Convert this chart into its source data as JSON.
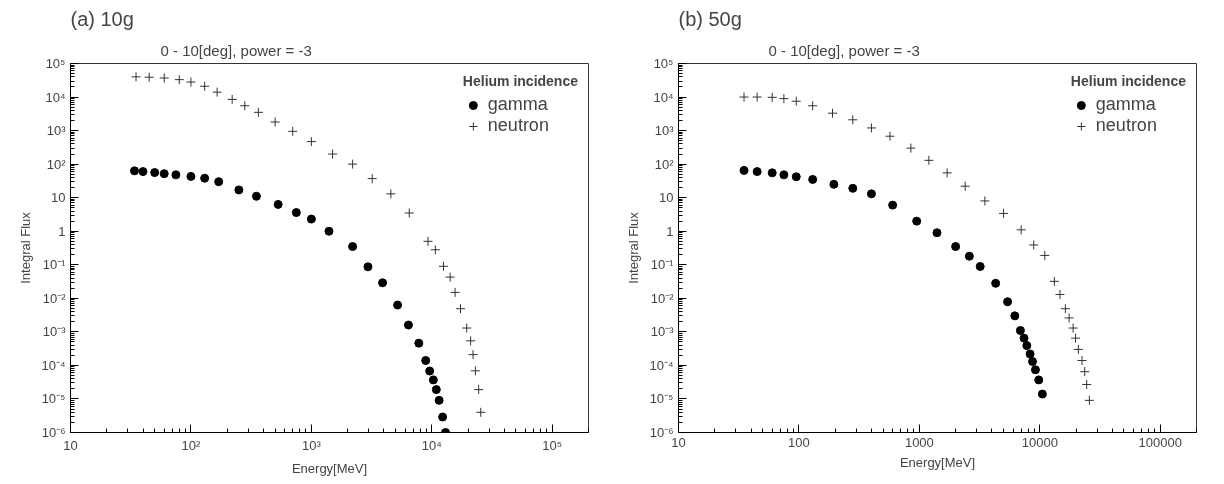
{
  "chart_data": [
    {
      "type": "scatter",
      "title": "(a) 10g",
      "subtitle": "0 - 10[deg], power = -3",
      "xlabel": "Energy[MeV]",
      "ylabel": "Integral Flux",
      "legend_title": "Helium incidence",
      "legend": "top right",
      "log": "xy",
      "grid": false,
      "xlim": [
        10,
        200000
      ],
      "ylim": [
        1e-06,
        100000
      ],
      "xticks": [
        10,
        {
          "value": 100,
          "label": "10²"
        },
        {
          "value": 1000,
          "label": "10³"
        },
        {
          "value": 10000,
          "label": "10⁴"
        },
        {
          "value": 100000,
          "label": "10⁵"
        }
      ],
      "yticks": [
        {
          "value": 1e-06,
          "label": "10⁻⁶"
        },
        {
          "value": 1e-05,
          "label": "10⁻⁵"
        },
        {
          "value": 0.0001,
          "label": "10⁻⁴"
        },
        {
          "value": 0.001,
          "label": "10⁻³"
        },
        {
          "value": 0.01,
          "label": "10⁻²"
        },
        {
          "value": 0.1,
          "label": "10⁻¹"
        },
        1,
        10,
        {
          "value": 100,
          "label": "10²"
        },
        {
          "value": 1000,
          "label": "10³"
        },
        {
          "value": 10000,
          "label": "10⁴"
        },
        {
          "value": 100000,
          "label": "10⁵"
        }
      ],
      "series": [
        {
          "name": "gamma",
          "color": "#000000",
          "marker": "circle",
          "x": [
            34,
            40,
            50,
            60,
            75,
            100,
            130,
            170,
            250,
            350,
            530,
            750,
            1000,
            1400,
            2200,
            2950,
            3900,
            5200,
            6400,
            7800,
            8900,
            9600,
            10300,
            10900,
            11500,
            12300,
            13000
          ],
          "values": [
            63,
            60,
            56,
            52,
            48,
            43,
            38,
            30,
            17,
            11,
            6.3,
            3.6,
            2.3,
            1.0,
            0.35,
            0.087,
            0.029,
            0.0063,
            0.0016,
            0.00046,
            0.00014,
            6.8e-05,
            3.7e-05,
            1.9e-05,
            9.1e-06,
            2.9e-06,
            1e-06
          ]
        },
        {
          "name": "neutron",
          "color": "#333333",
          "marker": "cross",
          "x": [
            35,
            45,
            60,
            80,
            100,
            130,
            165,
            220,
            280,
            363,
            500,
            700,
            1000,
            1500,
            2200,
            3200,
            4570,
            6500,
            9300,
            10700,
            12500,
            14200,
            15600,
            17300,
            19500,
            21000,
            22000,
            23000,
            24500,
            25500
          ],
          "values": [
            40000,
            39000,
            37000,
            33000,
            28000,
            21000,
            14000,
            8500,
            5500,
            3500,
            1800,
            950,
            470,
            200,
            100,
            37,
            13,
            3.5,
            0.5,
            0.28,
            0.09,
            0.043,
            0.015,
            0.0049,
            0.0013,
            0.00054,
            0.00021,
            6.9e-05,
            1.9e-05,
            4e-06
          ]
        }
      ]
    },
    {
      "type": "scatter",
      "title": "(b) 50g",
      "subtitle": "0 - 10[deg], power = -3",
      "xlabel": "Energy[MeV]",
      "ylabel": "Integral Flux",
      "legend_title": "Helium incidence",
      "legend": "top right",
      "log": "xy",
      "grid": false,
      "xlim": [
        10,
        200000
      ],
      "ylim": [
        1e-06,
        100000
      ],
      "xticks": [
        10,
        100,
        1000,
        10000,
        100000
      ],
      "yticks": [
        {
          "value": 1e-06,
          "label": "10⁻⁶"
        },
        {
          "value": 1e-05,
          "label": "10⁻⁵"
        },
        {
          "value": 0.0001,
          "label": "10⁻⁴"
        },
        {
          "value": 0.001,
          "label": "10⁻³"
        },
        {
          "value": 0.01,
          "label": "10⁻²"
        },
        {
          "value": 0.1,
          "label": "10⁻¹"
        },
        1,
        10,
        {
          "value": 100,
          "label": "10²"
        },
        {
          "value": 1000,
          "label": "10³"
        },
        {
          "value": 10000,
          "label": "10⁴"
        },
        {
          "value": 100000,
          "label": "10⁵"
        }
      ],
      "series": [
        {
          "name": "gamma",
          "color": "#000000",
          "marker": "circle",
          "x": [
            35,
            45,
            60,
            75,
            95,
            130,
            195,
            280,
            400,
            600,
            950,
            1400,
            2000,
            2600,
            3200,
            4300,
            5400,
            6200,
            6900,
            7400,
            7800,
            8300,
            8700,
            9200,
            9800,
            10500
          ],
          "values": [
            65,
            60,
            55,
            48,
            42,
            35,
            25,
            19,
            13,
            6,
            2,
            0.9,
            0.35,
            0.18,
            0.089,
            0.028,
            0.0079,
            0.003,
            0.0011,
            0.00065,
            0.00039,
            0.00022,
            0.00013,
            7.4e-05,
            3.7e-05,
            1.4e-05
          ]
        },
        {
          "name": "neutron",
          "color": "#333333",
          "marker": "cross",
          "x": [
            35,
            45,
            60,
            75,
            95,
            130,
            190,
            280,
            400,
            570,
            850,
            1200,
            1700,
            2400,
            3500,
            5000,
            7000,
            8900,
            11000,
            13200,
            14700,
            16300,
            17500,
            18900,
            19800,
            20900,
            22400,
            23600,
            24500,
            25800
          ],
          "values": [
            10000,
            10000,
            9800,
            9000,
            7500,
            5500,
            3300,
            2100,
            1200,
            680,
            300,
            130,
            55,
            22,
            8,
            3.4,
            1.1,
            0.39,
            0.19,
            0.032,
            0.013,
            0.0049,
            0.0026,
            0.0013,
            0.00065,
            0.0003,
            0.00014,
            6.5e-05,
            2.7e-05,
            9.1e-06
          ]
        }
      ]
    }
  ]
}
